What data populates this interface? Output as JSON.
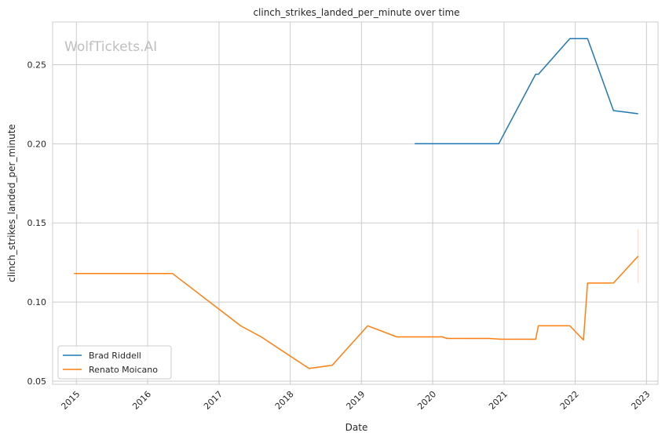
{
  "chart_data": {
    "type": "line",
    "title": "clinch_strikes_landed_per_minute over time",
    "xlabel": "Date",
    "ylabel": "clinch_strikes_landed_per_minute",
    "watermark": "WolfTickets.AI",
    "x_ticks": [
      "2015",
      "2016",
      "2017",
      "2018",
      "2019",
      "2020",
      "2021",
      "2022",
      "2023"
    ],
    "y_ticks": [
      "0.05",
      "0.10",
      "0.15",
      "0.20",
      "0.25"
    ],
    "xlim": [
      "2014-09-01",
      "2023-03-01"
    ],
    "ylim": [
      0.048,
      0.277
    ],
    "grid": true,
    "legend_position": "lower-left",
    "series": [
      {
        "name": "Brad Riddell",
        "color": "#1f77b4",
        "points": [
          [
            "2019-10-01",
            0.2
          ],
          [
            "2020-12-05",
            0.2
          ],
          [
            "2021-06-12",
            0.244
          ],
          [
            "2021-06-26",
            0.244
          ],
          [
            "2021-12-04",
            0.2665
          ],
          [
            "2022-03-05",
            0.2665
          ],
          [
            "2022-07-16",
            0.221
          ],
          [
            "2022-11-19",
            0.219
          ]
        ]
      },
      {
        "name": "Renato Moicano",
        "color": "#ff7f0e",
        "points": [
          [
            "2014-12-20",
            0.118
          ],
          [
            "2016-05-08",
            0.118
          ],
          [
            "2017-04-22",
            0.085
          ],
          [
            "2017-08-05",
            0.078
          ],
          [
            "2018-04-07",
            0.058
          ],
          [
            "2018-08-04",
            0.06
          ],
          [
            "2019-02-02",
            0.085
          ],
          [
            "2019-07-01",
            0.078
          ],
          [
            "2020-02-20",
            0.078
          ],
          [
            "2020-03-14",
            0.077
          ],
          [
            "2020-10-15",
            0.077
          ],
          [
            "2020-12-12",
            0.0765
          ],
          [
            "2021-06-12",
            0.0765
          ],
          [
            "2021-06-26",
            0.085
          ],
          [
            "2021-12-04",
            0.085
          ],
          [
            "2022-02-12",
            0.076
          ],
          [
            "2022-03-05",
            0.112
          ],
          [
            "2022-07-16",
            0.112
          ],
          [
            "2022-11-19",
            0.129
          ]
        ],
        "error_band": {
          "x": "2022-11-19",
          "low": 0.112,
          "high": 0.146
        }
      }
    ]
  }
}
